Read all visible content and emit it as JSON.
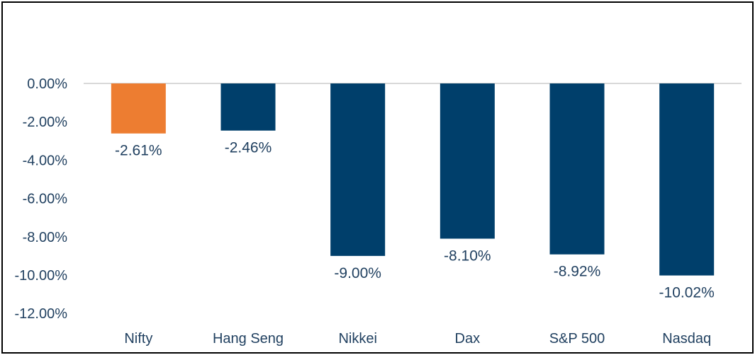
{
  "chart_data": {
    "type": "bar",
    "title": "",
    "xlabel": "",
    "ylabel": "",
    "categories": [
      "Nifty",
      "Hang Seng",
      "Nikkei",
      "Dax",
      "S&P 500",
      "Nasdaq"
    ],
    "values": [
      -2.61,
      -2.46,
      -9.0,
      -8.1,
      -8.92,
      -10.02
    ],
    "data_labels": [
      "-2.61%",
      "-2.46%",
      "-9.00%",
      "-8.10%",
      "-8.92%",
      "-10.02%"
    ],
    "ylim": [
      -12,
      0
    ],
    "yticks": [
      0,
      -2,
      -4,
      -6,
      -8,
      -10,
      -12
    ],
    "ytick_labels": [
      "0.00%",
      "-2.00%",
      "-4.00%",
      "-6.00%",
      "-8.00%",
      "-10.00%",
      "-12.00%"
    ],
    "grid": false,
    "legend": "none",
    "colors": {
      "highlight": "#ED7D31",
      "default": "#003F6B",
      "text": "#1F3F5F",
      "axis_line": "#D9D9D9",
      "frame": "#000000"
    },
    "highlight_categories": [
      "Nifty"
    ]
  }
}
